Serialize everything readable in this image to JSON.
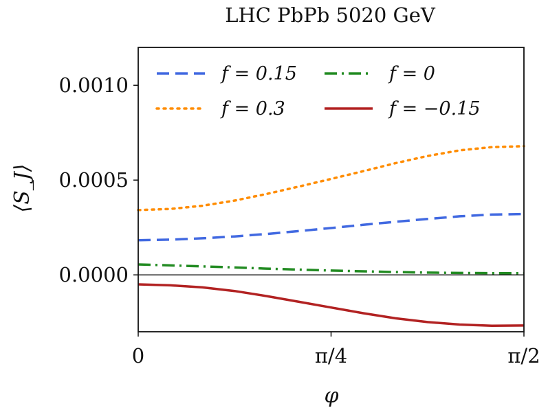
{
  "chart_data": {
    "type": "line",
    "title": "LHC PbPb 5020 GeV",
    "xlabel": "φ",
    "ylabel": "⟨S_J⟩",
    "xlim": [
      0,
      1.5708
    ],
    "ylim": [
      -0.0003,
      0.0012
    ],
    "x_ticks": [
      {
        "value": 0,
        "label": "0"
      },
      {
        "value": 0.7854,
        "label": "π/4"
      },
      {
        "value": 1.5708,
        "label": "π/2"
      }
    ],
    "y_ticks": [
      {
        "value": 0.0,
        "label": "0.0000"
      },
      {
        "value": 0.0005,
        "label": "0.0005"
      },
      {
        "value": 0.001,
        "label": "0.0010"
      }
    ],
    "zero_line": true,
    "grid": false,
    "legend_position": "top",
    "x": [
      0,
      0.1309,
      0.2618,
      0.3927,
      0.5236,
      0.6545,
      0.7854,
      0.9163,
      1.0472,
      1.1781,
      1.309,
      1.4399,
      1.5708
    ],
    "series": [
      {
        "name": "f = 0.15",
        "color": "#4169e1",
        "style": "dashed",
        "values": [
          0.000183,
          0.000186,
          0.000193,
          0.000203,
          0.000216,
          0.000231,
          0.000247,
          0.000264,
          0.00028,
          0.000295,
          0.000309,
          0.000318,
          0.000321
        ]
      },
      {
        "name": "f = 0.3",
        "color": "#ff8c00",
        "style": "dotted",
        "values": [
          0.000342,
          0.000348,
          0.000365,
          0.000392,
          0.000427,
          0.000466,
          0.000506,
          0.000547,
          0.000589,
          0.000627,
          0.000657,
          0.000674,
          0.000679
        ]
      },
      {
        "name": "f = 0",
        "color": "#228b22",
        "style": "dashdot",
        "values": [
          5.5e-05,
          5e-05,
          4.5e-05,
          3.9e-05,
          3.3e-05,
          2.8e-05,
          2.3e-05,
          1.9e-05,
          1.5e-05,
          1.2e-05,
          1e-05,
          9e-06,
          9e-06
        ]
      },
      {
        "name": "f = −0.15",
        "color": "#b22222",
        "style": "solid",
        "values": [
          -5e-05,
          -5.5e-05,
          -6.6e-05,
          -8.5e-05,
          -0.000112,
          -0.000142,
          -0.000172,
          -0.000202,
          -0.000229,
          -0.000249,
          -0.000262,
          -0.000268,
          -0.000267
        ]
      }
    ]
  }
}
